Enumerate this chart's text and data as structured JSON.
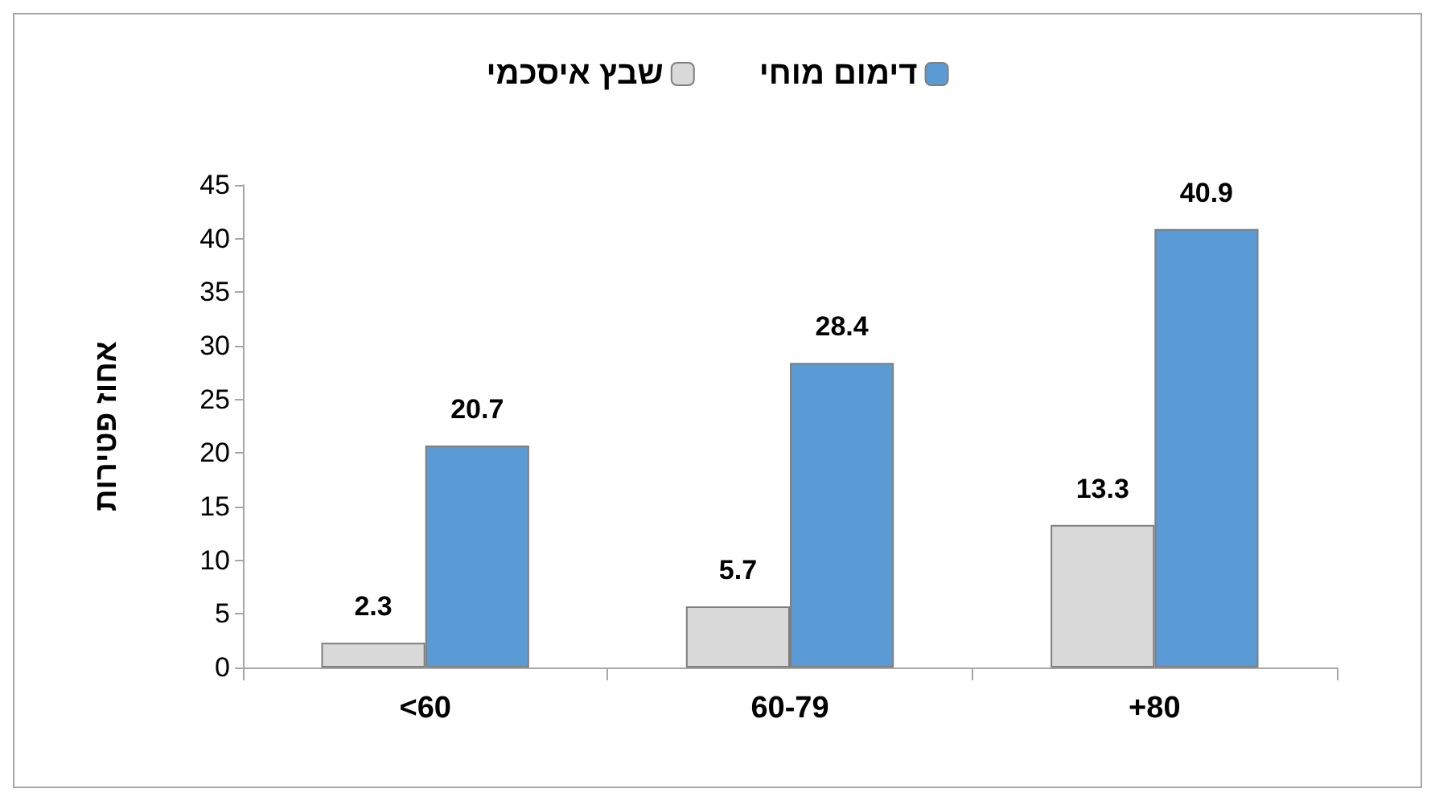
{
  "chart_data": {
    "type": "bar",
    "ylabel": "אחוז פטירות",
    "categories": [
      "<60",
      "60-79",
      "+80"
    ],
    "series": [
      {
        "name": "שבץ איסכמי",
        "color": "#d9d9d9",
        "values": [
          2.3,
          5.7,
          13.3
        ]
      },
      {
        "name": "דימום מוחי",
        "color": "#5b9bd5",
        "values": [
          20.7,
          28.4,
          40.9
        ]
      }
    ],
    "ylim": [
      0,
      45
    ],
    "yticks": [
      0,
      5,
      10,
      15,
      20,
      25,
      30,
      35,
      40,
      45
    ],
    "data_labels": true,
    "grid": false,
    "legend": "top"
  }
}
